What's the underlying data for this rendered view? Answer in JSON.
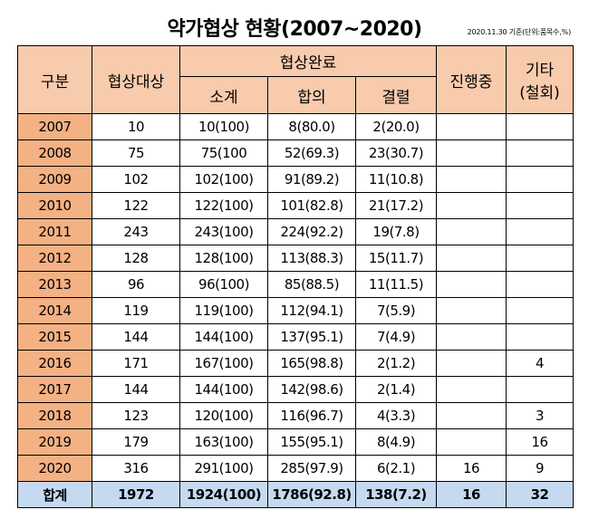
{
  "title": "약가협상 현황(2007~2020)",
  "note": "2020.11.30 기준(단위:품목수,%)",
  "headers": {
    "category": "구분",
    "target": "협상대상",
    "completed": "협상완료",
    "subtotal": "소계",
    "agreed": "합의",
    "failed": "결렬",
    "in_progress": "진행중",
    "other_line1": "기타",
    "other_line2": "(철회)"
  },
  "rows": [
    {
      "year": "2007",
      "target": "10",
      "subtotal": "10(100)",
      "agreed": "8(80.0)",
      "failed": "2(20.0)",
      "in_progress": "",
      "other": ""
    },
    {
      "year": "2008",
      "target": "75",
      "subtotal": "75(100",
      "agreed": "52(69.3)",
      "failed": "23(30.7)",
      "in_progress": "",
      "other": ""
    },
    {
      "year": "2009",
      "target": "102",
      "subtotal": "102(100)",
      "agreed": "91(89.2)",
      "failed": "11(10.8)",
      "in_progress": "",
      "other": ""
    },
    {
      "year": "2010",
      "target": "122",
      "subtotal": "122(100)",
      "agreed": "101(82.8)",
      "failed": "21(17.2)",
      "in_progress": "",
      "other": ""
    },
    {
      "year": "2011",
      "target": "243",
      "subtotal": "243(100)",
      "agreed": "224(92.2)",
      "failed": "19(7.8)",
      "in_progress": "",
      "other": ""
    },
    {
      "year": "2012",
      "target": "128",
      "subtotal": "128(100)",
      "agreed": "113(88.3)",
      "failed": "15(11.7)",
      "in_progress": "",
      "other": ""
    },
    {
      "year": "2013",
      "target": "96",
      "subtotal": "96(100)",
      "agreed": "85(88.5)",
      "failed": "11(11.5)",
      "in_progress": "",
      "other": ""
    },
    {
      "year": "2014",
      "target": "119",
      "subtotal": "119(100)",
      "agreed": "112(94.1)",
      "failed": "7(5.9)",
      "in_progress": "",
      "other": ""
    },
    {
      "year": "2015",
      "target": "144",
      "subtotal": "144(100)",
      "agreed": "137(95.1)",
      "failed": "7(4.9)",
      "in_progress": "",
      "other": ""
    },
    {
      "year": "2016",
      "target": "171",
      "subtotal": "167(100)",
      "agreed": "165(98.8)",
      "failed": "2(1.2)",
      "in_progress": "",
      "other": "4"
    },
    {
      "year": "2017",
      "target": "144",
      "subtotal": "144(100)",
      "agreed": "142(98.6)",
      "failed": "2(1.4)",
      "in_progress": "",
      "other": ""
    },
    {
      "year": "2018",
      "target": "123",
      "subtotal": "120(100)",
      "agreed": "116(96.7)",
      "failed": "4(3.3)",
      "in_progress": "",
      "other": "3"
    },
    {
      "year": "2019",
      "target": "179",
      "subtotal": "163(100)",
      "agreed": "155(95.1)",
      "failed": "8(4.9)",
      "in_progress": "",
      "other": "16"
    },
    {
      "year": "2020",
      "target": "316",
      "subtotal": "291(100)",
      "agreed": "285(97.9)",
      "failed": "6(2.1)",
      "in_progress": "16",
      "other": "9"
    }
  ],
  "total": {
    "label": "합계",
    "target": "1972",
    "subtotal": "1924(100)",
    "agreed": "1786(92.8)",
    "failed": "138(7.2)",
    "in_progress": "16",
    "other": "32"
  },
  "colors": {
    "header_bg": "#f8cbad",
    "year_bg": "#f4b183",
    "total_bg": "#c5d9f1"
  }
}
